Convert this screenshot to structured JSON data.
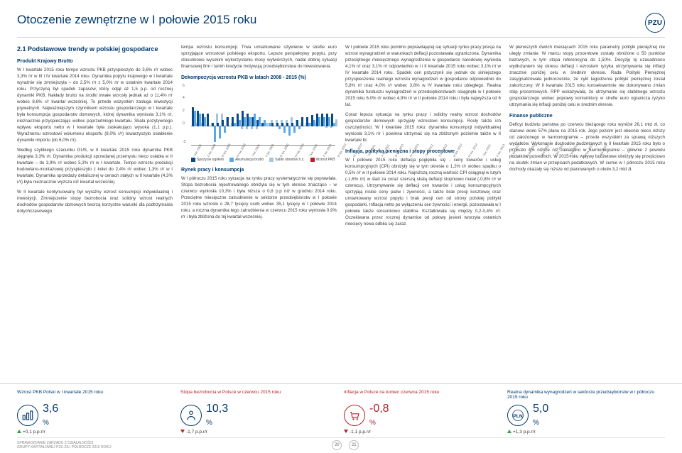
{
  "header": {
    "title": "Otoczenie zewnętrzne w I połowie 2015 roku",
    "logo": "PZU"
  },
  "col1": {
    "section_title": "2.1 Podstawowe trendy w polskiej gospodarce",
    "sub1": "Produkt Krajowy Brutto",
    "p1": "W I kwartale 2015 roku tempo wzrostu PKB przyspieszyło do 3,6% r/r wobec 3,3% r/r w III i IV kwartale 2014 roku. Dynamika popytu krajowego w I kwartale wyraźnie się zmniejszyła – do 2,5% r/r z 5,0% r/r w ostatnim kwartale 2014 roku. Przyczyną był spadek zapasów, który odjął aż 1,5 p.p. od rocznej dynamiki PKB. Nakłady brutto na środki trwałe wzrosły jednak aż o 11,4% r/r wobec 8,6% r/r kwartał wcześniej. To przede wszystkim zasługa inwestycji prywatnych. Najważniejszym czynnikiem wzrostu gospodarczego w I kwartale była konsumpcja gospodarstw domowych, której dynamika wyniosła 3,1% r/r, nieznacznie przyspieszając wobec poprzedniego kwartału. Skala pozytywnego wpływu eksportu netto w I kwartale była zaskakująco wysoka (1,1 p.p.). Wyraźnemu wzrostowi wolumenu eksportu (8,0% r/r) towarzyszyło osłabienie dynamiki importu (do 6,0% r/r).",
    "p2": "Według szybkiego szacunku GUS, w II kwartale 2015 roku dynamika PKB sięgnęła 3,3% r/r. Dynamika produkcji sprzedanej przemysłu nieco osłabła w II kwartale – do 3,9% r/r wobec 5,3% r/r w I kwartale. Tempo wzrostu produkcji budowlano-montażowej przyspieszyło z kolei do 2,4% r/r wobec 1,3% r/r w I kwartale. Dynamika sprzedaży detalicznej w cenach stałych w II kwartale (4,3% r/r) była nieznacznie wyższa niż kwartał wcześniej.",
    "p3": "W II kwartale kontynuowany był wyraźny wzrost konsumpcji indywidualnej i inwestycji. Zmniejszenie stopy bezrobocia oraz solidny wzrost realnych dochodów gospodarstw domowych tworzą korzystne warunki dla podtrzymania dotychczasowego"
  },
  "col2": {
    "p_top": "tempa wzrostu konsumpcji. Trwa umiarkowane ożywienie w strefie euro sprzyjające wzrostowi polskiego eksportu. Lepsze perspektywy popytu, przy stosunkowo wysokim wykorzystaniu mocy wytwórczych, nadal dobrej sytuacji finansowej firm i tanim kredycie motywują przedsiębiorstwa do inwestowania.",
    "chart_title": "Dekompozycja wzrostu PKB w latach 2008 - 2015 (%)",
    "chart": {
      "type": "bar",
      "ylim": [
        -3,
        6
      ],
      "yticks": [
        -3,
        0,
        2,
        4,
        6
      ],
      "categories": [
        "I kw. 2008",
        "II kw. 2008",
        "III kw. 2008",
        "IV kw. 2008",
        "I kw. 2009",
        "II kw. 2009",
        "III kw. 2009",
        "IV kw. 2009",
        "I kw. 2010",
        "II kw. 2010",
        "III kw. 2010",
        "IV kw. 2010",
        "I kw. 2011",
        "II kw. 2011",
        "III kw. 2011",
        "IV kw. 2011",
        "I kw. 2012",
        "II kw. 2012",
        "III kw. 2012",
        "IV kw. 2012",
        "I kw. 2013",
        "II kw. 2013",
        "III kw. 2013",
        "IV kw. 2013",
        "I kw. 2014",
        "II kw. 2014",
        "III kw. 2014",
        "IV kw. 2014",
        "I kw. 2015"
      ],
      "series": [
        {
          "name": "Spożycie ogółem",
          "color": "#0a4a8a",
          "values": [
            3.0,
            2.5,
            2.0,
            2.0,
            0.5,
            0.5,
            1.0,
            1.5,
            1.5,
            2.0,
            2.5,
            2.0,
            1.5,
            1.0,
            0.5,
            0.0,
            0.5,
            0.5,
            0.5,
            0.5,
            0.5,
            1.0,
            1.5,
            1.5,
            1.8,
            2.0,
            2.0,
            2.0,
            2.0
          ]
        },
        {
          "name": "Akumulacja brutto",
          "color": "#5aa9e6",
          "values": [
            2.5,
            2.0,
            1.5,
            0.0,
            -2.5,
            -2.0,
            -1.0,
            0.0,
            0.5,
            1.0,
            1.5,
            1.5,
            2.0,
            1.5,
            1.0,
            0.5,
            0.0,
            -0.5,
            -1.0,
            -1.5,
            -1.0,
            -0.5,
            0.0,
            0.5,
            1.0,
            1.5,
            1.5,
            1.5,
            0.5
          ]
        },
        {
          "name": "Saldo obrotów h.z.",
          "color": "#a7c4dc",
          "values": [
            0.5,
            0.5,
            0.0,
            0.5,
            2.0,
            2.0,
            1.5,
            0.5,
            0.0,
            -0.5,
            -0.5,
            -0.5,
            -0.5,
            0.0,
            0.5,
            1.0,
            1.0,
            1.0,
            1.0,
            1.5,
            1.0,
            0.5,
            0.5,
            0.5,
            0.5,
            0.0,
            -0.2,
            -0.2,
            1.1
          ]
        }
      ],
      "pkb_line": {
        "name": "Wzrost PKB",
        "color": "#b22028"
      }
    },
    "sub_rynek": "Rynek pracy i konsumpcja",
    "p_rynek": "W I półroczu 2015 roku sytuacja na rynku pracy systematycznie się poprawiała. Stopa bezrobocia rejestrowanego obniżyła się w tym okresie znacząco – w czerwcu wyniosła 10,3% i była niższa o 0,8 p.p niż w grudniu 2014 roku. Przeciętne miesięczne zatrudnienie w sektorze przedsiębiorstw w I połowie 2015 roku wzrosło o 28,7 tysięcy osób wobec 35,1 tysięcy w I połowie 2014 roku, a roczna dynamika tego zatrudnienia w czerwcu 2015 roku wyniosła 0,9% r/r i była zbliżona do tej kwartał wcześniej."
  },
  "col3": {
    "p1": "W I połowie 2015 roku pomimo poprawiającej się sytuacji rynku pracy presja na wzrost wynagrodzeń w warunkach deflacji pozostawała ograniczona. Dynamika przeciętnego miesięcznego wynagrodzenia w gospodarce narodowej wyniosła 4,1% r/r oraz 3,1% r/r odpowiednio w I i II kwartale 2015 roku wobec 3,1% r/r w IV kwartale 2014 roku. Spadek cen przyczynił się jednak do silniejszego przyspieszenia realnego wzrostu wynagrodzeń w gospodarce odpowiednio do 5,8% r/r oraz 4,0% r/r wobec 3,8% w IV kwartale roku ubiegłego. Realna dynamika funduszu wynagrodzeń w przedsiębiorstwach osiągnęła w I połowie 2015 roku 6,0% r/r wobec 4,9% r/r w II połowie 2014 roku i była najwyższa od 6 lat.",
    "p2": "Coraz lepsza sytuacja na rynku pracy i solidny realny wzrost dochodów gospodarstw domowych sprzyjały wzrostowi konsumpcji. Rosły także ich oszczędności. W I kwartale 2015 roku: dynamika konsumpcji indywidualnej wyniosła 3,1% r/r i powinna utrzymać się na zbliżonym poziomie także w II kwartale br.",
    "sub_infl": "Inflacja, polityka pieniężna i stopy procentowe",
    "p_infl": "W I połowie 2015 roku deflacja pogłębiła się - ceny towarów i usług konsumpcyjnych (CPI) obniżyły się w tym okresie o 1,2% r/r wobec spadku o 0,5% r/r w II połowie 2014 roku. Najniższą roczną wartość CPI osiągnął w lutym (-1,6% r/r) w ślad za coraz szerszą skalą deflacji stopniowo malał (-0,8% r/r w czerwcu). Utrzymywanie się deflacji cen towarów i usług konsumpcyjnych sprzyjają niskie ceny paliw i żywności, a także brak presji kosztowej oraz umiarkowany wzrost popytu i brak presji cen od strony polskiej polityki gospodarki. Inflacja netto po wyłączeniu cen żywności i energii, pozostawała w I połowie także stosunkowo stabilna. Kształtowała się między 0,2-0,4% r/r. Oczekiwana przez rocznej dynamice od połowy jesieni tworzyła ostatnich miesięcy nowa odbiła się zaraz."
  },
  "col4": {
    "p1": "W pierwszych dwóch miesiącach 2015 roku parametry polityki pieniężnej nie uległy zmianie. W marcu stopy procentowe zostały obniżone o 50 punktów bazowych, w tym stopa referencyjna do 1,50%. Decyzję tę uzasadniono wydłużaniem się okresu deflacji i wzrostem ryzyka utrzymywania się inflacji znacznie poniżej celu w średnim okresie. Rada Polityki Pieniężnej zasygnalizowała jednocześnie, że cykl łagodzenia polityki pieniężnej został zakończony. W II kwartale 2015 roku konsekwentnie nie dokonywano zmian stóp procentowych. RPP wskazywała, że utrzymanie się stabilnego wzrostu gospodarczego wobec poprawy koniunktury w strefie euro ogranicza ryzyko utrzymania się inflacji poniżej celu w średnim okresie.",
    "sub_fin": "Finanse publiczne",
    "p_fin": "Deficyt budżetu państwa po czerwcu bieżącego roku wyniósł 26,1 mld zł, co stanowi około 57% planu na 2015 rok. Jego poziom jest obecnie nieco niższy od założonego w harmonogramie – przede wszystkim za sprawą niższych wydatków. Wykonanie dochodów budżetowych w II kwartale 2015 roku było o przeszło 4% niższe niż zakładano w harmonogramie – głównie z powodu podatków pośrednich. W 2015 roku wpływy budżetowe obniżyły się przejściowo na skutek zmian w przepisach podatkowych. W sumie w I półroczu 2015 roku dochody okazały się niższe od planowanych o około 3,2 mld zł."
  },
  "kpis": [
    {
      "title": "Wzrost PKB Polski w I kwartale 2015 roku",
      "titleColor": "#003a70",
      "icon": "bars",
      "iconColor": "#003a70",
      "value": "3,6",
      "unit": "%",
      "valColor": "#003a70",
      "delta": "+0,1 p.p.r/r",
      "dir": "up"
    },
    {
      "title": "Stopa bezrobocia w Polsce w czerwcu 2015 roku",
      "titleColor": "#b22028",
      "icon": "person",
      "iconColor": "#003a70",
      "value": "10,3",
      "unit": "%",
      "valColor": "#003a70",
      "delta": "-1,7 p.p.r/r",
      "dir": "down"
    },
    {
      "title": "Inflacja w Polsce na koniec czerwca 2015 roku",
      "titleColor": "#b22028",
      "icon": "cart",
      "iconColor": "#b22028",
      "value": "-0,8",
      "unit": "%",
      "valColor": "#b22028",
      "delta": "-1,1 p.p.r/r",
      "dir": "down"
    },
    {
      "title": "Realna dynamika wynagrodzeń w sektorze przedsiębiorstw w I półroczu 2015 roku",
      "titleColor": "#003a70",
      "icon": "pln",
      "iconColor": "#003a70",
      "value": "5,0",
      "unit": "%",
      "valColor": "#003a70",
      "delta": "+1,3 p.p.r/r",
      "dir": "up"
    }
  ],
  "footer": {
    "left1": "SPRAWOZDANIE ZARZĄDU Z DZIAŁALNOŚCI",
    "left2": "GRUPY KAPITAŁOWEJ PZU ZA I PÓŁROCZE 2015 ROKU",
    "page_left": "20",
    "page_right": "21"
  }
}
